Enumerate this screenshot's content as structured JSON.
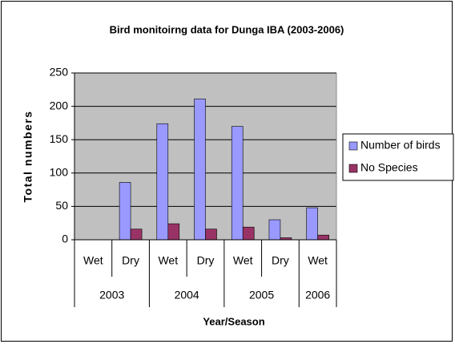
{
  "chart_data": {
    "type": "bar",
    "title": "Bird monitoirng data for Dunga IBA (2003-2006)",
    "x_label": "Year/Season",
    "y_label": "Total numbers",
    "groups": [
      {
        "name": "2003",
        "categories": [
          "Wet",
          "Dry"
        ]
      },
      {
        "name": "2004",
        "categories": [
          "Wet",
          "Dry"
        ]
      },
      {
        "name": "2005",
        "categories": [
          "Wet",
          "Dry"
        ]
      },
      {
        "name": "2006",
        "categories": [
          "Wet"
        ]
      }
    ],
    "series": [
      {
        "name": "Number of birds",
        "color": "#9999ff",
        "values": [
          0,
          86,
          174,
          211,
          170,
          30,
          48
        ]
      },
      {
        "name": "No Species",
        "color": "#993366",
        "values": [
          0,
          16,
          24,
          16,
          19,
          3,
          7
        ]
      }
    ],
    "ylim": [
      0,
      250
    ],
    "yticks": [
      0,
      50,
      100,
      150,
      200,
      250
    ],
    "grid": true,
    "legend": "right"
  }
}
